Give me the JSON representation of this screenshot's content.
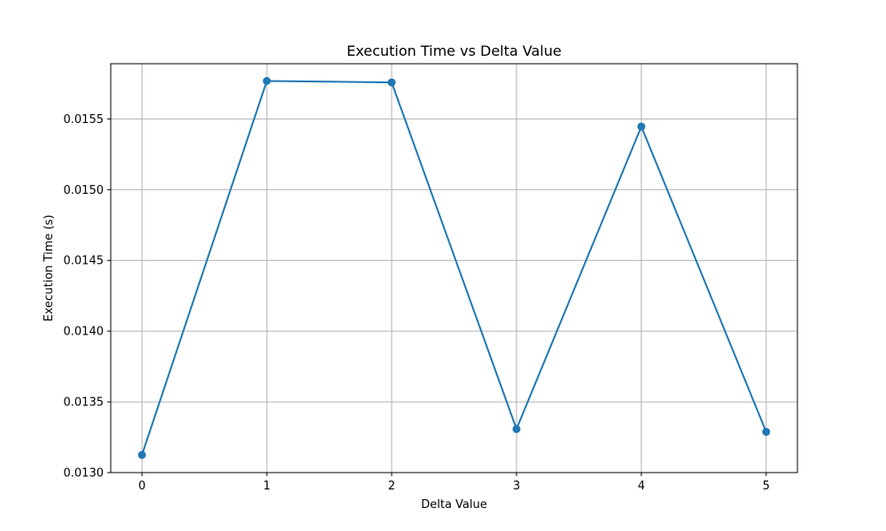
{
  "chart_data": {
    "type": "line",
    "title": "Execution Time vs Delta Value",
    "xlabel": "Delta Value",
    "ylabel": "Execution Time (s)",
    "x": [
      0,
      1,
      2,
      3,
      4,
      5
    ],
    "series": [
      {
        "values": [
          0.013125,
          0.015768,
          0.015758,
          0.013308,
          0.015446,
          0.013288
        ],
        "color": "#1f77b4",
        "marker": "circle"
      }
    ],
    "xticks": [
      "0",
      "1",
      "2",
      "3",
      "4",
      "5"
    ],
    "yticks": [
      "0.0130",
      "0.0135",
      "0.0140",
      "0.0145",
      "0.0150",
      "0.0155"
    ],
    "xlim": [
      -0.25,
      5.25
    ],
    "ylim": [
      0.013,
      0.01589
    ],
    "grid": true
  }
}
